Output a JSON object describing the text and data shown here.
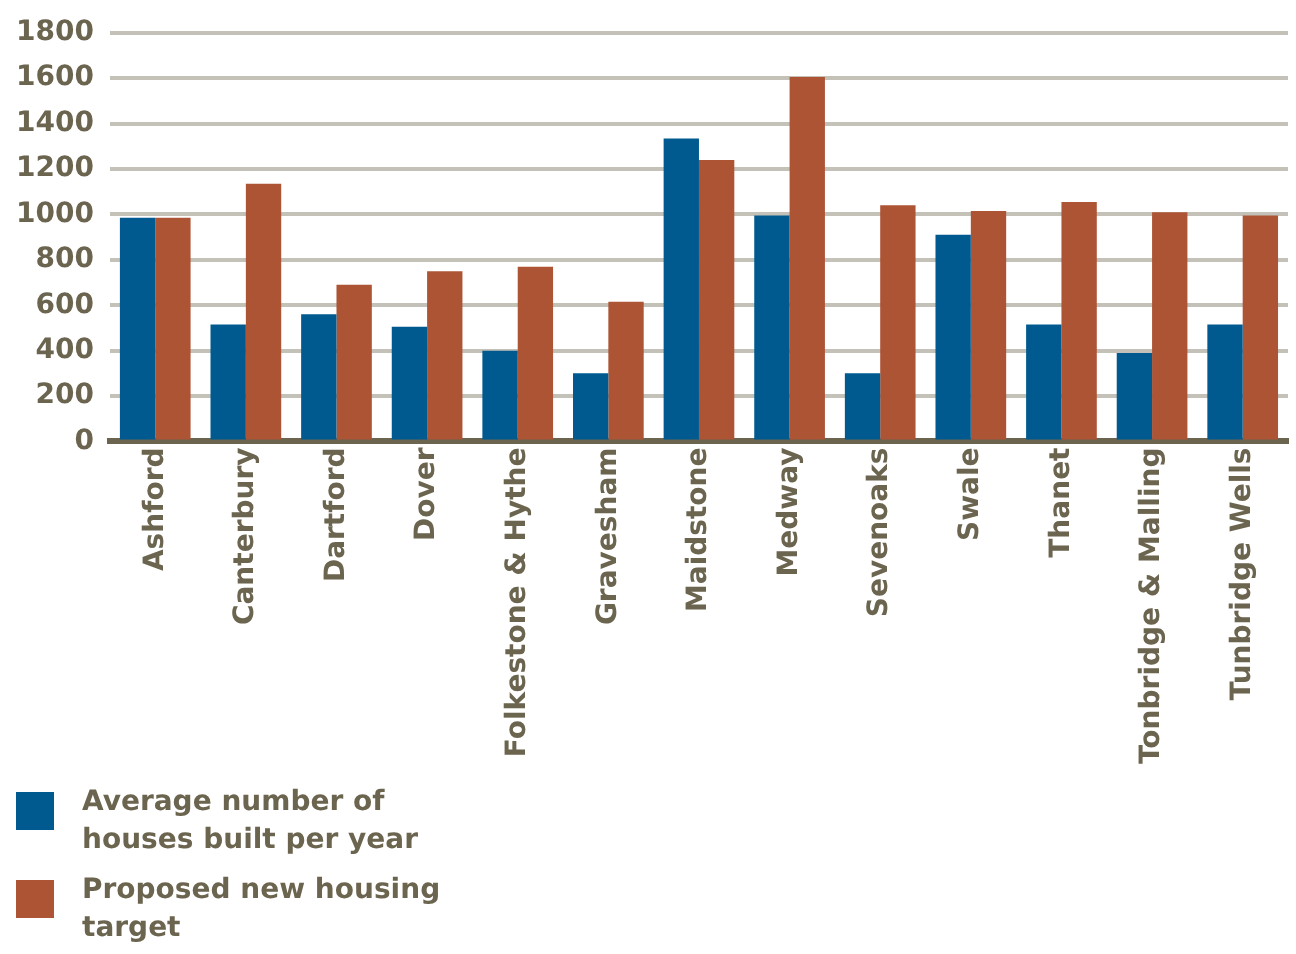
{
  "chart_data": {
    "type": "bar",
    "categories": [
      "Ashford",
      "Canterbury",
      "Dartford",
      "Dover",
      "Folkestone & Hythe",
      "Gravesham",
      "Maidstone",
      "Medway",
      "Sevenoaks",
      "Swale",
      "Thanet",
      "Tonbridge & Malling",
      "Tunbridge Wells"
    ],
    "series": [
      {
        "name": "Average number of houses built per year",
        "color": "#005a8f",
        "values": [
          985,
          515,
          560,
          505,
          400,
          300,
          1335,
          995,
          300,
          910,
          515,
          390,
          515
        ]
      },
      {
        "name": "Proposed new housing target",
        "color": "#ac5434",
        "values": [
          985,
          1135,
          690,
          750,
          770,
          615,
          1240,
          1605,
          1040,
          1015,
          1055,
          1010,
          995
        ]
      }
    ],
    "ylim": [
      0,
      1800
    ],
    "yticks": [
      0,
      200,
      400,
      600,
      800,
      1000,
      1200,
      1400,
      1600,
      1800
    ],
    "grid": "y",
    "legend": "bottom left"
  }
}
